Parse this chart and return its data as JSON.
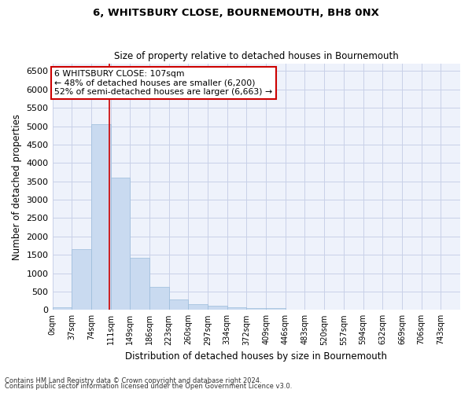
{
  "title": "6, WHITSBURY CLOSE, BOURNEMOUTH, BH8 0NX",
  "subtitle": "Size of property relative to detached houses in Bournemouth",
  "xlabel": "Distribution of detached houses by size in Bournemouth",
  "ylabel": "Number of detached properties",
  "bar_color": "#c9daf0",
  "bar_edge_color": "#9bbcdb",
  "grid_color": "#c8d0e8",
  "categories": [
    "0sqm",
    "37sqm",
    "74sqm",
    "111sqm",
    "149sqm",
    "186sqm",
    "223sqm",
    "260sqm",
    "297sqm",
    "334sqm",
    "372sqm",
    "409sqm",
    "446sqm",
    "483sqm",
    "520sqm",
    "557sqm",
    "594sqm",
    "632sqm",
    "669sqm",
    "706sqm",
    "743sqm"
  ],
  "bar_heights": [
    75,
    1650,
    5060,
    3590,
    1410,
    620,
    290,
    150,
    110,
    75,
    60,
    60,
    0,
    0,
    0,
    0,
    0,
    0,
    0,
    0,
    0
  ],
  "ylim": [
    0,
    6700
  ],
  "yticks": [
    0,
    500,
    1000,
    1500,
    2000,
    2500,
    3000,
    3500,
    4000,
    4500,
    5000,
    5500,
    6000,
    6500
  ],
  "vline_x": 2.95,
  "vline_color": "#cc0000",
  "annotation_text": "6 WHITSBURY CLOSE: 107sqm\n← 48% of detached houses are smaller (6,200)\n52% of semi-detached houses are larger (6,663) →",
  "annotation_box_color": "#ffffff",
  "annotation_box_edge": "#cc0000",
  "footer1": "Contains HM Land Registry data © Crown copyright and database right 2024.",
  "footer2": "Contains public sector information licensed under the Open Government Licence v3.0.",
  "background_color": "#eef2fb"
}
